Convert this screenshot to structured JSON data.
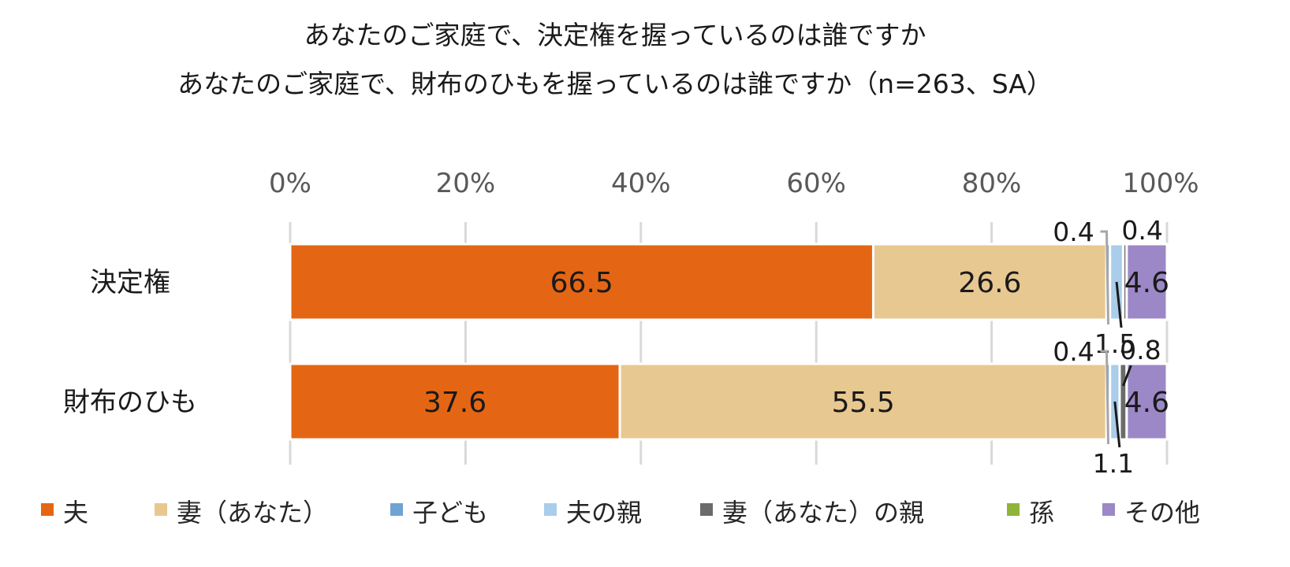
{
  "chart_data": {
    "type": "bar",
    "orientation": "horizontal",
    "stacked": true,
    "title_lines": [
      "あなたのご家庭で、決定権を握っているのは誰ですか",
      "あなたのご家庭で、財布のひもを握っているのは誰ですか（n=263、SA）"
    ],
    "categories": [
      "決定権",
      "財布のひも"
    ],
    "xlim": [
      0,
      100
    ],
    "x_ticks": [
      "0%",
      "20%",
      "40%",
      "60%",
      "80%",
      "100%"
    ],
    "grid": true,
    "legend_position": "bottom",
    "series": [
      {
        "name": "夫",
        "color": "#E46614",
        "values": [
          66.5,
          37.6
        ],
        "labels": [
          "66.5",
          "37.6"
        ],
        "label_mode": [
          "inside",
          "inside"
        ]
      },
      {
        "name": "妻（あなた）",
        "color": "#E8C891",
        "values": [
          26.6,
          55.5
        ],
        "labels": [
          "26.6",
          "55.5"
        ],
        "label_mode": [
          "inside",
          "inside"
        ]
      },
      {
        "name": "子ども",
        "color": "#6FA3D3",
        "values": [
          0.4,
          0.4
        ],
        "labels": [
          "0.4",
          "0.4"
        ],
        "label_mode": [
          "callout-left",
          "callout-left"
        ]
      },
      {
        "name": "夫の親",
        "color": "#A9CDEA",
        "values": [
          1.5,
          1.1
        ],
        "labels": [
          "1.5",
          "1.1"
        ],
        "label_mode": [
          "callout-below",
          "callout-below"
        ]
      },
      {
        "name": "妻（あなた）の親",
        "color": "#6B6B6B",
        "values": [
          0.4,
          0.8
        ],
        "labels": [
          "0.4",
          "0.8"
        ],
        "label_mode": [
          "callout-above",
          "callout-above"
        ]
      },
      {
        "name": "孫",
        "color": "#8FB43A",
        "values": [
          0.0,
          0.0
        ],
        "labels": [
          null,
          null
        ],
        "label_mode": [
          "none",
          "none"
        ]
      },
      {
        "name": "その他",
        "color": "#9C88C6",
        "values": [
          4.6,
          4.6
        ],
        "labels": [
          "4.6",
          "4.6"
        ],
        "label_mode": [
          "inside",
          "inside"
        ]
      }
    ]
  }
}
